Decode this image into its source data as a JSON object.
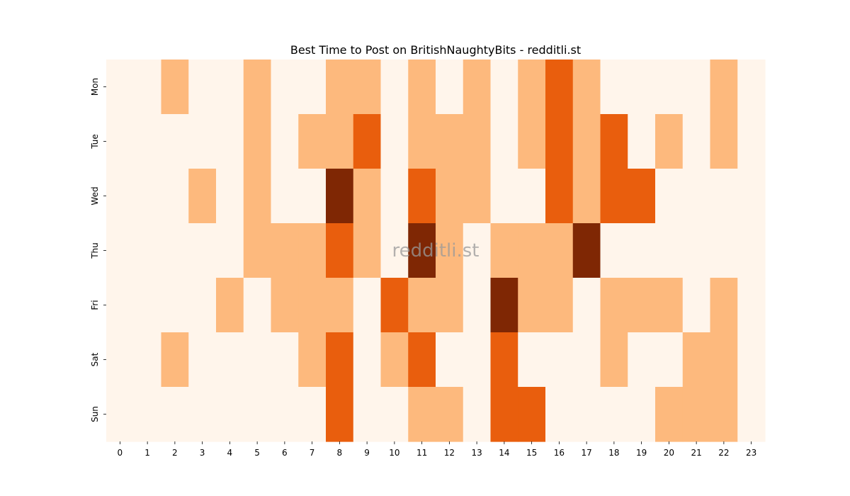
{
  "chart_data": {
    "type": "heatmap",
    "title": "Best Time to Post on BritishNaughtyBits - redditli.st",
    "watermark": "redditli.st",
    "x_categories": [
      "0",
      "1",
      "2",
      "3",
      "4",
      "5",
      "6",
      "7",
      "8",
      "9",
      "10",
      "11",
      "12",
      "13",
      "14",
      "15",
      "16",
      "17",
      "18",
      "19",
      "20",
      "21",
      "22",
      "23"
    ],
    "y_categories": [
      "Mon",
      "Tue",
      "Wed",
      "Thu",
      "Fri",
      "Sat",
      "Sun"
    ],
    "value_range": [
      0,
      3
    ],
    "colormap": [
      "#fff5eb",
      "#fdb97d",
      "#e95e0d",
      "#7f2704"
    ],
    "colorbar": false,
    "values": [
      [
        0,
        0,
        1,
        0,
        0,
        1,
        0,
        0,
        1,
        1,
        0,
        1,
        0,
        1,
        0,
        1,
        2,
        1,
        0,
        0,
        0,
        0,
        1,
        0
      ],
      [
        0,
        0,
        0,
        0,
        0,
        1,
        0,
        1,
        1,
        2,
        0,
        1,
        1,
        1,
        0,
        1,
        2,
        1,
        2,
        0,
        1,
        0,
        1,
        0
      ],
      [
        0,
        0,
        0,
        1,
        0,
        1,
        0,
        0,
        3,
        1,
        0,
        2,
        1,
        1,
        0,
        0,
        2,
        1,
        2,
        2,
        0,
        0,
        0,
        0
      ],
      [
        0,
        0,
        0,
        0,
        0,
        1,
        1,
        1,
        2,
        1,
        0,
        3,
        1,
        0,
        1,
        1,
        1,
        3,
        0,
        0,
        0,
        0,
        0,
        0
      ],
      [
        0,
        0,
        0,
        0,
        1,
        0,
        1,
        1,
        1,
        0,
        2,
        1,
        1,
        0,
        3,
        1,
        1,
        0,
        1,
        1,
        1,
        0,
        1,
        0
      ],
      [
        0,
        0,
        1,
        0,
        0,
        0,
        0,
        1,
        2,
        0,
        1,
        2,
        0,
        0,
        2,
        0,
        0,
        0,
        1,
        0,
        0,
        1,
        1,
        0
      ],
      [
        0,
        0,
        0,
        0,
        0,
        0,
        0,
        0,
        2,
        0,
        0,
        1,
        1,
        0,
        2,
        2,
        0,
        0,
        0,
        0,
        1,
        1,
        1,
        0
      ]
    ]
  }
}
